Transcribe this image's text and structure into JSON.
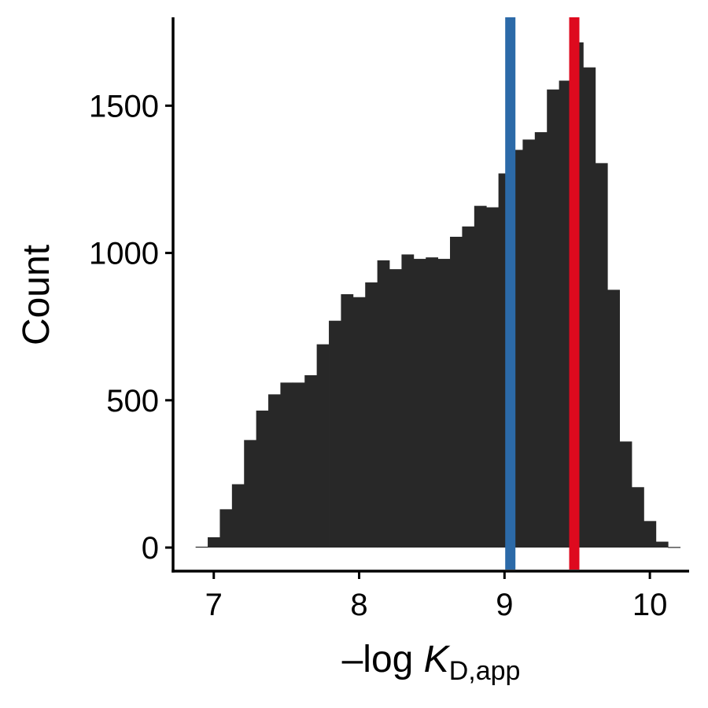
{
  "chart_data": {
    "type": "bar",
    "subtype": "histogram",
    "title": "",
    "xlabel": {
      "prefix": "–log ",
      "symbol": "K",
      "subscript": "D,app"
    },
    "ylabel": "Count",
    "xlim": [
      6.72,
      10.27
    ],
    "ylim": [
      -80,
      1800
    ],
    "x_ticks": [
      7,
      8,
      9,
      10
    ],
    "x_tick_labels": [
      "7",
      "8",
      "9",
      "10"
    ],
    "y_ticks": [
      0,
      500,
      1000,
      1500
    ],
    "y_tick_labels": [
      "0",
      "500",
      "1000",
      "1500"
    ],
    "grid": false,
    "bin_width": 0.0833,
    "bins": [
      {
        "x0": 6.875,
        "count": 3
      },
      {
        "x0": 6.9583,
        "count": 35
      },
      {
        "x0": 7.0417,
        "count": 130
      },
      {
        "x0": 7.125,
        "count": 215
      },
      {
        "x0": 7.2083,
        "count": 365
      },
      {
        "x0": 7.2917,
        "count": 465
      },
      {
        "x0": 7.375,
        "count": 520
      },
      {
        "x0": 7.4583,
        "count": 560
      },
      {
        "x0": 7.5417,
        "count": 560
      },
      {
        "x0": 7.625,
        "count": 585
      },
      {
        "x0": 7.7083,
        "count": 690
      },
      {
        "x0": 7.7917,
        "count": 770
      },
      {
        "x0": 7.875,
        "count": 860
      },
      {
        "x0": 7.9583,
        "count": 850
      },
      {
        "x0": 8.0417,
        "count": 900
      },
      {
        "x0": 8.125,
        "count": 975
      },
      {
        "x0": 8.2083,
        "count": 945
      },
      {
        "x0": 8.2917,
        "count": 995
      },
      {
        "x0": 8.375,
        "count": 980
      },
      {
        "x0": 8.4583,
        "count": 985
      },
      {
        "x0": 8.5417,
        "count": 980
      },
      {
        "x0": 8.625,
        "count": 1055
      },
      {
        "x0": 8.7083,
        "count": 1090
      },
      {
        "x0": 8.7917,
        "count": 1160
      },
      {
        "x0": 8.875,
        "count": 1155
      },
      {
        "x0": 8.9583,
        "count": 1270
      },
      {
        "x0": 9.0417,
        "count": 1350
      },
      {
        "x0": 9.125,
        "count": 1385
      },
      {
        "x0": 9.2083,
        "count": 1410
      },
      {
        "x0": 9.2917,
        "count": 1555
      },
      {
        "x0": 9.375,
        "count": 1585
      },
      {
        "x0": 9.4583,
        "count": 1715
      },
      {
        "x0": 9.5417,
        "count": 1630
      },
      {
        "x0": 9.625,
        "count": 1305
      },
      {
        "x0": 9.7083,
        "count": 875
      },
      {
        "x0": 9.7917,
        "count": 360
      },
      {
        "x0": 9.875,
        "count": 205
      },
      {
        "x0": 9.9583,
        "count": 90
      },
      {
        "x0": 10.0417,
        "count": 20
      },
      {
        "x0": 10.125,
        "count": 2
      }
    ],
    "bar_color": "#282828",
    "reference_lines": [
      {
        "x": 9.04,
        "color": "#2c6aa8"
      },
      {
        "x": 9.48,
        "color": "#de0a1e"
      }
    ]
  }
}
